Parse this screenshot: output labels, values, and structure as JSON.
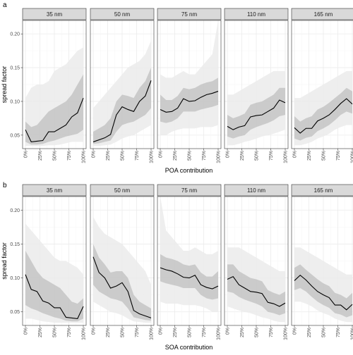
{
  "chart_data": [
    {
      "type": "line",
      "tag": "a",
      "xlabel": "POA contribution",
      "ylabel": "spread factor",
      "x_ticks": [
        "0%",
        "25%",
        "50%",
        "75%",
        "100%"
      ],
      "y_ticks": [
        "0.05",
        "0.10",
        "0.15",
        "0.20"
      ],
      "ylim": [
        0.03,
        0.22
      ],
      "xlim": [
        0,
        100
      ],
      "grid": true,
      "band_colors": [
        "#ebebeb",
        "#c4c4c4"
      ],
      "line_color": "#000000",
      "facets": [
        {
          "label": "35 nm",
          "x": [
            0,
            10,
            20,
            30,
            40,
            50,
            60,
            70,
            80,
            90,
            100
          ],
          "y": [
            0.058,
            0.04,
            0.041,
            0.042,
            0.055,
            0.055,
            0.06,
            0.065,
            0.077,
            0.083,
            0.105
          ],
          "outer_low": [
            0.034,
            0.034,
            0.034,
            0.034,
            0.035,
            0.035,
            0.036,
            0.038,
            0.04,
            0.04,
            0.04
          ],
          "outer_high": [
            0.105,
            0.12,
            0.125,
            0.125,
            0.13,
            0.145,
            0.15,
            0.155,
            0.165,
            0.175,
            0.18
          ],
          "inner_low": [
            0.04,
            0.036,
            0.036,
            0.037,
            0.04,
            0.042,
            0.045,
            0.048,
            0.05,
            0.052,
            0.058
          ],
          "inner_high": [
            0.07,
            0.062,
            0.065,
            0.075,
            0.085,
            0.09,
            0.095,
            0.1,
            0.11,
            0.125,
            0.14
          ]
        },
        {
          "label": "50 nm",
          "x": [
            0,
            10,
            20,
            30,
            40,
            50,
            60,
            70,
            80,
            90,
            100
          ],
          "y": [
            0.04,
            0.043,
            0.046,
            0.051,
            0.08,
            0.092,
            0.088,
            0.085,
            0.1,
            0.108,
            0.131
          ],
          "outer_low": [
            0.034,
            0.034,
            0.035,
            0.036,
            0.04,
            0.045,
            0.048,
            0.05,
            0.055,
            0.06,
            0.065
          ],
          "outer_high": [
            0.09,
            0.1,
            0.11,
            0.12,
            0.13,
            0.14,
            0.15,
            0.155,
            0.16,
            0.17,
            0.19
          ],
          "inner_low": [
            0.037,
            0.038,
            0.04,
            0.042,
            0.055,
            0.065,
            0.068,
            0.07,
            0.075,
            0.08,
            0.09
          ],
          "inner_high": [
            0.055,
            0.06,
            0.065,
            0.075,
            0.1,
            0.11,
            0.108,
            0.105,
            0.12,
            0.13,
            0.15
          ]
        },
        {
          "label": "75 nm",
          "x": [
            0,
            10,
            20,
            30,
            40,
            50,
            60,
            70,
            80,
            90,
            100
          ],
          "y": [
            0.088,
            0.084,
            0.085,
            0.09,
            0.104,
            0.1,
            0.101,
            0.106,
            0.11,
            0.112,
            0.115
          ],
          "outer_low": [
            0.05,
            0.05,
            0.055,
            0.058,
            0.06,
            0.06,
            0.06,
            0.062,
            0.062,
            0.062,
            0.065
          ],
          "outer_high": [
            0.14,
            0.135,
            0.135,
            0.14,
            0.145,
            0.14,
            0.14,
            0.15,
            0.16,
            0.17,
            0.22
          ],
          "inner_low": [
            0.07,
            0.068,
            0.07,
            0.075,
            0.085,
            0.085,
            0.085,
            0.088,
            0.09,
            0.092,
            0.095
          ],
          "inner_high": [
            0.11,
            0.102,
            0.102,
            0.108,
            0.12,
            0.118,
            0.12,
            0.125,
            0.128,
            0.13,
            0.135
          ]
        },
        {
          "label": "110 nm",
          "x": [
            0,
            10,
            20,
            30,
            40,
            50,
            60,
            70,
            80,
            90,
            100
          ],
          "y": [
            0.063,
            0.058,
            0.062,
            0.064,
            0.077,
            0.079,
            0.08,
            0.085,
            0.09,
            0.102,
            0.098
          ],
          "outer_low": [
            0.035,
            0.035,
            0.037,
            0.04,
            0.042,
            0.045,
            0.048,
            0.05,
            0.052,
            0.055,
            0.058
          ],
          "outer_high": [
            0.11,
            0.11,
            0.115,
            0.12,
            0.125,
            0.13,
            0.135,
            0.14,
            0.145,
            0.145,
            0.145
          ],
          "inner_low": [
            0.048,
            0.045,
            0.048,
            0.05,
            0.058,
            0.062,
            0.065,
            0.068,
            0.072,
            0.078,
            0.08
          ],
          "inner_high": [
            0.08,
            0.075,
            0.078,
            0.082,
            0.095,
            0.098,
            0.1,
            0.105,
            0.11,
            0.12,
            0.12
          ]
        },
        {
          "label": "165 nm",
          "x": [
            0,
            10,
            20,
            30,
            40,
            50,
            60,
            70,
            80,
            90,
            100
          ],
          "y": [
            0.061,
            0.053,
            0.06,
            0.06,
            0.071,
            0.075,
            0.08,
            0.088,
            0.097,
            0.104,
            0.096
          ],
          "outer_low": [
            0.035,
            0.035,
            0.037,
            0.04,
            0.045,
            0.048,
            0.052,
            0.058,
            0.062,
            0.065,
            0.065
          ],
          "outer_high": [
            0.105,
            0.105,
            0.11,
            0.115,
            0.12,
            0.125,
            0.13,
            0.135,
            0.14,
            0.145,
            0.145
          ],
          "inner_low": [
            0.045,
            0.042,
            0.046,
            0.048,
            0.056,
            0.06,
            0.065,
            0.072,
            0.08,
            0.085,
            0.082
          ],
          "inner_high": [
            0.078,
            0.07,
            0.075,
            0.078,
            0.088,
            0.092,
            0.098,
            0.105,
            0.112,
            0.12,
            0.115
          ]
        }
      ]
    },
    {
      "type": "line",
      "tag": "b",
      "xlabel": "SOA contribution",
      "ylabel": "spread factor",
      "x_ticks": [
        "0%",
        "25%",
        "50%",
        "75%",
        "100%"
      ],
      "y_ticks": [
        "0.05",
        "0.10",
        "0.15",
        "0.20"
      ],
      "ylim": [
        0.03,
        0.22
      ],
      "xlim": [
        0,
        100
      ],
      "grid": true,
      "band_colors": [
        "#ebebeb",
        "#c4c4c4"
      ],
      "line_color": "#000000",
      "facets": [
        {
          "label": "35 nm",
          "x": [
            0,
            10,
            20,
            30,
            40,
            50,
            60,
            70,
            80,
            90,
            100
          ],
          "y": [
            0.105,
            0.083,
            0.08,
            0.066,
            0.063,
            0.056,
            0.056,
            0.042,
            0.041,
            0.04,
            0.058
          ],
          "outer_low": [
            0.04,
            0.04,
            0.038,
            0.036,
            0.035,
            0.034,
            0.034,
            0.034,
            0.034,
            0.034,
            0.034
          ],
          "outer_high": [
            0.18,
            0.17,
            0.16,
            0.15,
            0.14,
            0.13,
            0.125,
            0.125,
            0.12,
            0.115,
            0.105
          ],
          "inner_low": [
            0.06,
            0.055,
            0.052,
            0.048,
            0.045,
            0.042,
            0.04,
            0.037,
            0.036,
            0.036,
            0.04
          ],
          "inner_high": [
            0.14,
            0.125,
            0.11,
            0.1,
            0.095,
            0.09,
            0.085,
            0.075,
            0.065,
            0.062,
            0.07
          ]
        },
        {
          "label": "50 nm",
          "x": [
            0,
            10,
            20,
            30,
            40,
            50,
            60,
            70,
            80,
            90,
            100
          ],
          "y": [
            0.131,
            0.108,
            0.1,
            0.085,
            0.088,
            0.093,
            0.08,
            0.052,
            0.047,
            0.044,
            0.041
          ],
          "outer_low": [
            0.065,
            0.06,
            0.055,
            0.05,
            0.048,
            0.045,
            0.04,
            0.036,
            0.035,
            0.034,
            0.034
          ],
          "outer_high": [
            0.19,
            0.175,
            0.165,
            0.16,
            0.155,
            0.15,
            0.14,
            0.13,
            0.12,
            0.11,
            0.09
          ],
          "inner_low": [
            0.09,
            0.08,
            0.075,
            0.07,
            0.068,
            0.065,
            0.055,
            0.042,
            0.04,
            0.038,
            0.037
          ],
          "inner_high": [
            0.15,
            0.13,
            0.12,
            0.108,
            0.11,
            0.11,
            0.1,
            0.075,
            0.065,
            0.06,
            0.055
          ]
        },
        {
          "label": "75 nm",
          "x": [
            0,
            10,
            20,
            30,
            40,
            50,
            60,
            70,
            80,
            90,
            100
          ],
          "y": [
            0.115,
            0.112,
            0.11,
            0.106,
            0.101,
            0.1,
            0.104,
            0.09,
            0.086,
            0.084,
            0.088
          ],
          "outer_low": [
            0.065,
            0.062,
            0.062,
            0.062,
            0.06,
            0.06,
            0.06,
            0.058,
            0.055,
            0.05,
            0.05
          ],
          "outer_high": [
            0.22,
            0.17,
            0.16,
            0.15,
            0.14,
            0.14,
            0.145,
            0.14,
            0.135,
            0.135,
            0.14
          ],
          "inner_low": [
            0.095,
            0.092,
            0.09,
            0.088,
            0.085,
            0.085,
            0.085,
            0.075,
            0.07,
            0.068,
            0.07
          ],
          "inner_high": [
            0.135,
            0.13,
            0.128,
            0.125,
            0.12,
            0.118,
            0.12,
            0.108,
            0.102,
            0.102,
            0.11
          ]
        },
        {
          "label": "110 nm",
          "x": [
            0,
            10,
            20,
            30,
            40,
            50,
            60,
            70,
            80,
            90,
            100
          ],
          "y": [
            0.098,
            0.102,
            0.09,
            0.085,
            0.08,
            0.079,
            0.077,
            0.064,
            0.062,
            0.058,
            0.063
          ],
          "outer_low": [
            0.058,
            0.055,
            0.052,
            0.05,
            0.048,
            0.045,
            0.042,
            0.04,
            0.037,
            0.035,
            0.035
          ],
          "outer_high": [
            0.145,
            0.145,
            0.145,
            0.14,
            0.135,
            0.13,
            0.125,
            0.12,
            0.115,
            0.11,
            0.11
          ],
          "inner_low": [
            0.08,
            0.078,
            0.072,
            0.068,
            0.065,
            0.062,
            0.058,
            0.05,
            0.048,
            0.045,
            0.048
          ],
          "inner_high": [
            0.12,
            0.12,
            0.11,
            0.105,
            0.1,
            0.098,
            0.095,
            0.082,
            0.078,
            0.075,
            0.08
          ]
        },
        {
          "label": "165 nm",
          "x": [
            0,
            10,
            20,
            30,
            40,
            50,
            60,
            70,
            80,
            90,
            100
          ],
          "y": [
            0.096,
            0.104,
            0.097,
            0.088,
            0.08,
            0.075,
            0.071,
            0.06,
            0.06,
            0.053,
            0.061
          ],
          "outer_low": [
            0.065,
            0.065,
            0.062,
            0.058,
            0.052,
            0.048,
            0.045,
            0.04,
            0.037,
            0.035,
            0.035
          ],
          "outer_high": [
            0.145,
            0.145,
            0.14,
            0.135,
            0.13,
            0.125,
            0.12,
            0.115,
            0.11,
            0.105,
            0.105
          ],
          "inner_low": [
            0.082,
            0.085,
            0.08,
            0.072,
            0.065,
            0.06,
            0.056,
            0.048,
            0.046,
            0.042,
            0.045
          ],
          "inner_high": [
            0.115,
            0.12,
            0.112,
            0.105,
            0.098,
            0.092,
            0.088,
            0.078,
            0.075,
            0.07,
            0.078
          ]
        }
      ]
    }
  ]
}
